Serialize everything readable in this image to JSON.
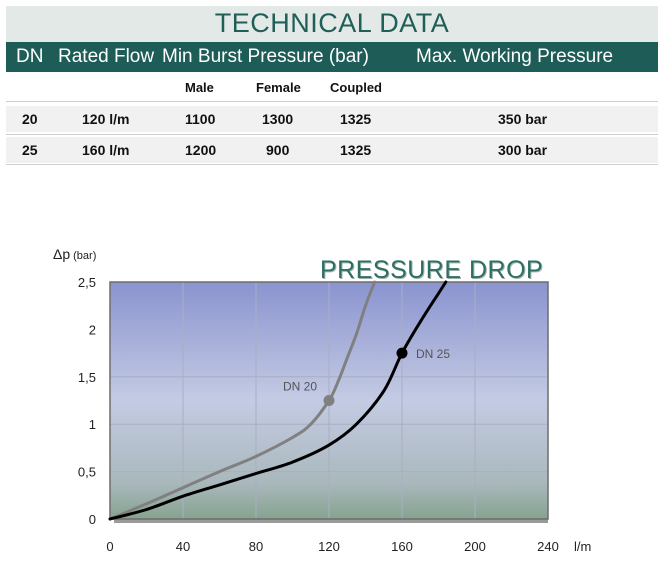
{
  "table": {
    "title": "TECHNICAL DATA",
    "headers": {
      "dn": "DN",
      "rated_flow": "Rated Flow",
      "min_burst": "Min Burst Pressure (bar)",
      "max_working": "Max. Working Pressure"
    },
    "subheaders": {
      "male": "Male",
      "female": "Female",
      "coupled": "Coupled"
    },
    "rows": [
      {
        "dn": "20",
        "rated_flow": "120 l/m",
        "male": "1100",
        "female": "1300",
        "coupled": "1325",
        "max_working": "350 bar"
      },
      {
        "dn": "25",
        "rated_flow": "160 l/m",
        "male": "1200",
        "female": "900",
        "coupled": "1325",
        "max_working": "300 bar"
      }
    ]
  },
  "chart_data": {
    "type": "line",
    "title": "PRESSURE DROP",
    "ylabel_symbol": "Δp",
    "ylabel_unit": "(bar)",
    "xlabel": "l/m",
    "xlim": [
      0,
      240
    ],
    "ylim": [
      0,
      2.5
    ],
    "x_ticks": [
      0,
      40,
      80,
      120,
      160,
      200,
      240
    ],
    "y_ticks": [
      0,
      0.5,
      1,
      1.5,
      2,
      2.5
    ],
    "x_tick_labels": [
      "0",
      "40",
      "80",
      "120",
      "160",
      "200",
      "240"
    ],
    "y_tick_labels": [
      "0",
      "0,5",
      "1",
      "1,5",
      "2",
      "2,5"
    ],
    "grid": true,
    "series": [
      {
        "name": "DN 20",
        "color": "#808080",
        "x": [
          0,
          20,
          40,
          60,
          80,
          100,
          110,
          120,
          125,
          130,
          135,
          140,
          145
        ],
        "y": [
          0,
          0.16,
          0.33,
          0.5,
          0.66,
          0.86,
          1.0,
          1.25,
          1.45,
          1.7,
          1.95,
          2.25,
          2.5
        ]
      },
      {
        "name": "DN 25",
        "color": "#000000",
        "x": [
          0,
          20,
          40,
          60,
          80,
          100,
          120,
          135,
          150,
          160,
          170,
          180,
          184
        ],
        "y": [
          0,
          0.1,
          0.24,
          0.36,
          0.48,
          0.6,
          0.78,
          1.0,
          1.35,
          1.75,
          2.08,
          2.38,
          2.5
        ]
      }
    ],
    "markers": [
      {
        "series": "DN 20",
        "x": 120,
        "y": 1.25,
        "label": "DN 20"
      },
      {
        "series": "DN 25",
        "x": 160,
        "y": 1.75,
        "label": "DN 25"
      }
    ]
  }
}
